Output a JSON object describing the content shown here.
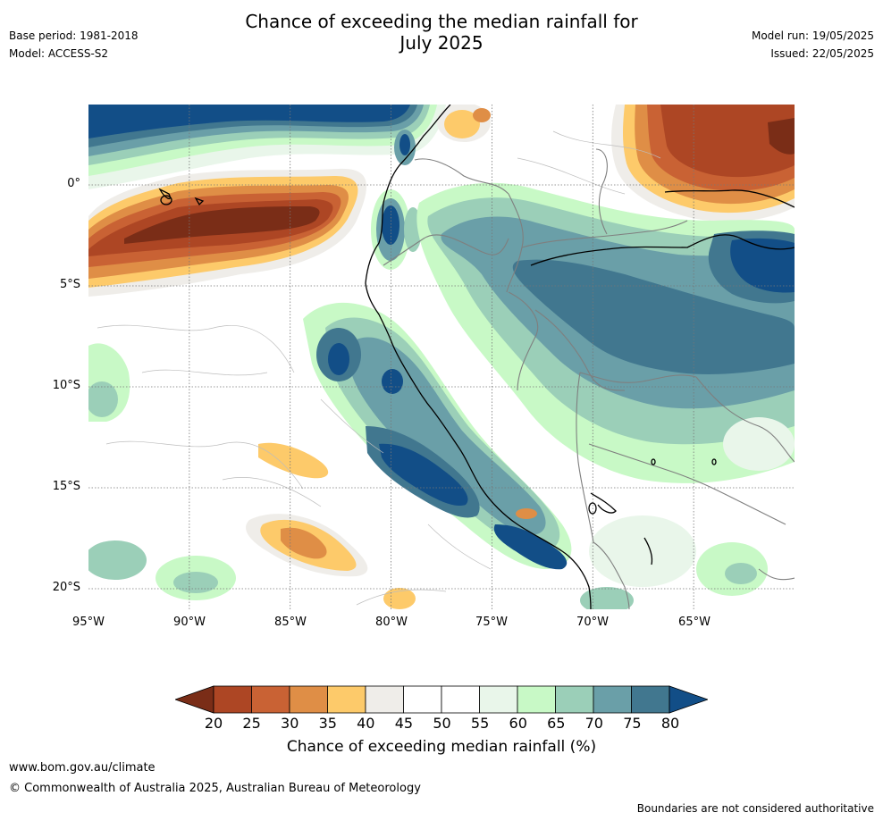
{
  "header": {
    "title_line1": "Chance of exceeding the median rainfall for",
    "title_line2": "July 2025",
    "base_period": "Base period: 1981-2018",
    "model": "Model: ACCESS-S2",
    "model_run": "Model run: 19/05/2025",
    "issued": "Issued: 22/05/2025"
  },
  "map": {
    "lat_labels": [
      "0°",
      "5°S",
      "10°S",
      "15°S",
      "20°S"
    ],
    "lon_labels": [
      "95°W",
      "90°W",
      "85°W",
      "80°W",
      "75°W",
      "70°W",
      "65°W"
    ],
    "extent": {
      "lon_min": -95,
      "lon_max": -60,
      "lat_min": -20.9,
      "lat_max": 3.8
    }
  },
  "colorbar": {
    "ticks": [
      "20",
      "25",
      "30",
      "35",
      "40",
      "45",
      "50",
      "55",
      "60",
      "65",
      "70",
      "75",
      "80"
    ],
    "colors": [
      "#7a2d17",
      "#ad4624",
      "#c96234",
      "#df8e46",
      "#fdca6a",
      "#efede9",
      "#ffffff",
      "#ffffff",
      "#e9f6ea",
      "#c8f9c6",
      "#9bcfb8",
      "#6a9fa8",
      "#41778f",
      "#124e87"
    ],
    "label": "Chance of exceeding median rainfall (%)"
  },
  "footer": {
    "website": "www.bom.gov.au/climate",
    "copyright": "© Commonwealth of Australia 2025, Australian Bureau of Meteorology",
    "disclaimer": "Boundaries are not considered authoritative"
  }
}
